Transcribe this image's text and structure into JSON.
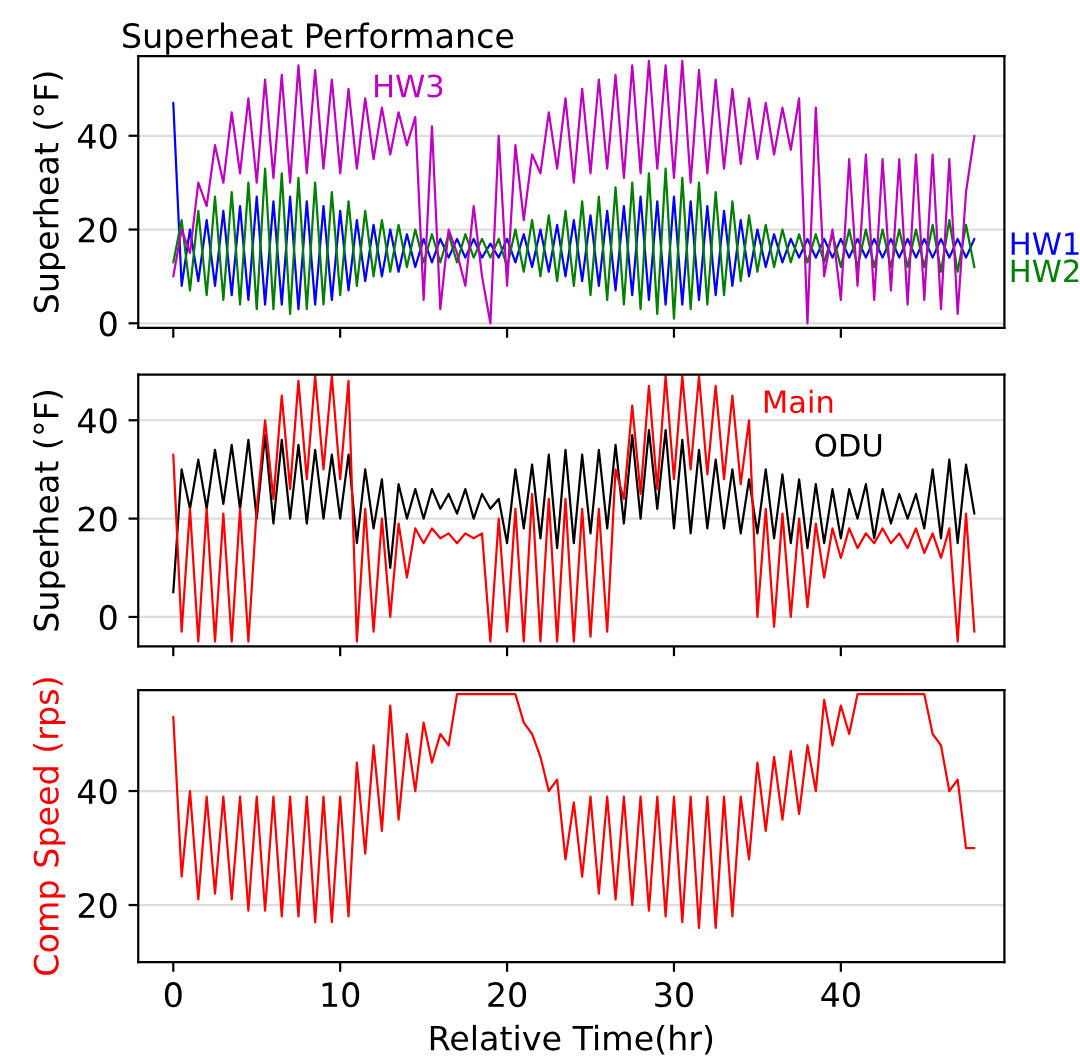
{
  "chart_data": [
    {
      "type": "line",
      "title": "Superheat Performance",
      "ylabel": "Superheat (°F)",
      "xlim": [
        -2.1,
        49.8
      ],
      "xticks": [
        {
          "value": 0,
          "label": null
        },
        {
          "value": 10,
          "label": null
        },
        {
          "value": 20,
          "label": null
        },
        {
          "value": 30,
          "label": null
        },
        {
          "value": 40,
          "label": null
        }
      ],
      "ylim": [
        -1,
        57
      ],
      "yticks": [
        0,
        20,
        40
      ],
      "grid": "y",
      "legend": false,
      "tick_labels": "y",
      "x": [
        0,
        0.5,
        1,
        1.5,
        2,
        2.5,
        3,
        3.5,
        4,
        4.5,
        5,
        5.5,
        6,
        6.5,
        7,
        7.5,
        8,
        8.5,
        9,
        9.5,
        10,
        10.5,
        11,
        11.5,
        12,
        12.5,
        13,
        13.5,
        14,
        14.5,
        15,
        15.5,
        16,
        16.5,
        17,
        17.5,
        18,
        18.5,
        19,
        19.5,
        20,
        20.5,
        21,
        21.5,
        22,
        22.5,
        23,
        23.5,
        24,
        24.5,
        25,
        25.5,
        26,
        26.5,
        27,
        27.5,
        28,
        28.5,
        29,
        29.5,
        30,
        30.5,
        31,
        31.5,
        32,
        32.5,
        33,
        33.5,
        34,
        34.5,
        35,
        35.5,
        36,
        36.5,
        37,
        37.5,
        38,
        38.5,
        39,
        39.5,
        40,
        40.5,
        41,
        41.5,
        42,
        42.5,
        43,
        43.5,
        44,
        44.5,
        45,
        45.5,
        46,
        46.5,
        47,
        47.5,
        48
      ],
      "series": [
        {
          "name": "HW1",
          "color": "#0000ff",
          "values": [
            47,
            8,
            20,
            9,
            22,
            8,
            24,
            6,
            25,
            5,
            27,
            4,
            26,
            4,
            27,
            3,
            26,
            4,
            25,
            5,
            24,
            7,
            22,
            9,
            21,
            10,
            20,
            11,
            19,
            12,
            18,
            13,
            18,
            14,
            18,
            14,
            18,
            14,
            17,
            14,
            18,
            13,
            19,
            12,
            20,
            11,
            21,
            10,
            22,
            9,
            23,
            8,
            24,
            7,
            25,
            6,
            27,
            5,
            26,
            4,
            27,
            4,
            26,
            5,
            25,
            6,
            24,
            8,
            22,
            10,
            20,
            12,
            19,
            13,
            18,
            14,
            18,
            14,
            18,
            14,
            18,
            14,
            18,
            14,
            18,
            14,
            18,
            14,
            18,
            14,
            18,
            14,
            18,
            14,
            18,
            14,
            18
          ]
        },
        {
          "name": "HW2",
          "color": "#008000",
          "values": [
            13,
            22,
            7,
            24,
            6,
            27,
            5,
            28,
            4,
            30,
            3,
            33,
            3,
            32,
            2,
            31,
            3,
            30,
            4,
            28,
            6,
            26,
            8,
            24,
            10,
            22,
            11,
            21,
            12,
            20,
            13,
            19,
            13,
            19,
            13,
            19,
            14,
            18,
            14,
            18,
            12,
            20,
            11,
            22,
            10,
            23,
            9,
            24,
            8,
            26,
            6,
            27,
            5,
            29,
            4,
            30,
            3,
            32,
            2,
            33,
            1,
            31,
            3,
            30,
            4,
            28,
            6,
            26,
            9,
            23,
            11,
            21,
            12,
            20,
            13,
            19,
            13,
            19,
            13,
            19,
            12,
            20,
            12,
            20,
            12,
            20,
            12,
            20,
            12,
            20,
            12,
            21,
            11,
            22,
            11,
            21,
            12
          ]
        },
        {
          "name": "HW3",
          "color": "#c000c0",
          "values": [
            10,
            20,
            15,
            30,
            25,
            38,
            30,
            45,
            32,
            48,
            30,
            52,
            31,
            53,
            30,
            55,
            32,
            54,
            33,
            52,
            32,
            50,
            33,
            48,
            35,
            46,
            36,
            45,
            38,
            44,
            5,
            42,
            3,
            20,
            15,
            8,
            25,
            10,
            0,
            40,
            8,
            38,
            22,
            36,
            32,
            45,
            33,
            48,
            30,
            50,
            32,
            52,
            33,
            53,
            31,
            55,
            32,
            56,
            33,
            55,
            31,
            56,
            30,
            54,
            32,
            52,
            33,
            50,
            34,
            48,
            35,
            47,
            36,
            46,
            37,
            48,
            0,
            46,
            10,
            20,
            5,
            35,
            8,
            36,
            5,
            35,
            7,
            35,
            4,
            36,
            5,
            36,
            3,
            35,
            2,
            28,
            40
          ]
        }
      ]
    },
    {
      "type": "line",
      "ylabel": "Superheat (°F)",
      "xlim": [
        -2.1,
        49.8
      ],
      "xticks": [
        {
          "value": 0,
          "label": null
        },
        {
          "value": 10,
          "label": null
        },
        {
          "value": 20,
          "label": null
        },
        {
          "value": 30,
          "label": null
        },
        {
          "value": 40,
          "label": null
        }
      ],
      "ylim": [
        -6,
        49.3
      ],
      "yticks": [
        0,
        20,
        40
      ],
      "grid": "y",
      "legend": false,
      "tick_labels": "y",
      "x": [
        0,
        0.5,
        1,
        1.5,
        2,
        2.5,
        3,
        3.5,
        4,
        4.5,
        5,
        5.5,
        6,
        6.5,
        7,
        7.5,
        8,
        8.5,
        9,
        9.5,
        10,
        10.5,
        11,
        11.5,
        12,
        12.5,
        13,
        13.5,
        14,
        14.5,
        15,
        15.5,
        16,
        16.5,
        17,
        17.5,
        18,
        18.5,
        19,
        19.5,
        20,
        20.5,
        21,
        21.5,
        22,
        22.5,
        23,
        23.5,
        24,
        24.5,
        25,
        25.5,
        26,
        26.5,
        27,
        27.5,
        28,
        28.5,
        29,
        29.5,
        30,
        30.5,
        31,
        31.5,
        32,
        32.5,
        33,
        33.5,
        34,
        34.5,
        35,
        35.5,
        36,
        36.5,
        37,
        37.5,
        38,
        38.5,
        39,
        39.5,
        40,
        40.5,
        41,
        41.5,
        42,
        42.5,
        43,
        43.5,
        44,
        44.5,
        45,
        45.5,
        46,
        46.5,
        47,
        47.5,
        48
      ],
      "series": [
        {
          "name": "ODU",
          "color": "#000000",
          "values": [
            5,
            30,
            22,
            32,
            22,
            34,
            23,
            35,
            22,
            36,
            20,
            37,
            19,
            36,
            20,
            35,
            19,
            34,
            20,
            33,
            20,
            33,
            15,
            30,
            18,
            28,
            10,
            27,
            20,
            26,
            20,
            26,
            22,
            25,
            21,
            26,
            20,
            25,
            22,
            24,
            15,
            30,
            18,
            31,
            16,
            33,
            14,
            34,
            15,
            33,
            17,
            34,
            18,
            35,
            19,
            37,
            20,
            38,
            22,
            38,
            18,
            36,
            17,
            34,
            18,
            32,
            18,
            30,
            17,
            28,
            17,
            30,
            16,
            29,
            15,
            28,
            14,
            27,
            15,
            26,
            16,
            26,
            20,
            27,
            16,
            26,
            19,
            25,
            20,
            25,
            18,
            30,
            16,
            32,
            15,
            31,
            21
          ]
        },
        {
          "name": "Main",
          "color": "#ff0000",
          "values": [
            33,
            -3,
            22,
            -5,
            22,
            -5,
            21,
            -5,
            22,
            -5,
            22,
            40,
            24,
            45,
            26,
            48,
            28,
            49,
            30,
            49,
            28,
            48,
            -5,
            22,
            -3,
            20,
            0,
            19,
            8,
            18,
            15,
            18,
            16,
            17,
            15,
            17,
            16,
            17,
            -5,
            20,
            -3,
            22,
            -5,
            25,
            -5,
            24,
            -5,
            24,
            -5,
            22,
            -4,
            22,
            -3,
            30,
            24,
            43,
            25,
            47,
            26,
            49,
            28,
            49,
            30,
            49,
            29,
            47,
            28,
            45,
            27,
            40,
            0,
            22,
            -2,
            21,
            0,
            20,
            2,
            19,
            8,
            18,
            12,
            18,
            14,
            17,
            15,
            18,
            15,
            17,
            14,
            18,
            13,
            17,
            12,
            18,
            -5,
            21,
            -3
          ]
        }
      ]
    },
    {
      "type": "line",
      "xlabel": "Relative Time(hr)",
      "ylabel": "Comp Speed (rps)",
      "xlim": [
        -2.1,
        49.8
      ],
      "xticks": [
        0,
        10,
        20,
        30,
        40
      ],
      "ylim": [
        10,
        57.7
      ],
      "yticks": [
        20,
        40
      ],
      "grid": "y",
      "legend": false,
      "x": [
        0,
        0.5,
        1,
        1.5,
        2,
        2.5,
        3,
        3.5,
        4,
        4.5,
        5,
        5.5,
        6,
        6.5,
        7,
        7.5,
        8,
        8.5,
        9,
        9.5,
        10,
        10.5,
        11,
        11.5,
        12,
        12.5,
        13,
        13.5,
        14,
        14.5,
        15,
        15.5,
        16,
        16.5,
        17,
        17.5,
        18,
        18.5,
        19,
        19.5,
        20,
        20.5,
        21,
        21.5,
        22,
        22.5,
        23,
        23.5,
        24,
        24.5,
        25,
        25.5,
        26,
        26.5,
        27,
        27.5,
        28,
        28.5,
        29,
        29.5,
        30,
        30.5,
        31,
        31.5,
        32,
        32.5,
        33,
        33.5,
        34,
        34.5,
        35,
        35.5,
        36,
        36.5,
        37,
        37.5,
        38,
        38.5,
        39,
        39.5,
        40,
        40.5,
        41,
        41.5,
        42,
        42.5,
        43,
        43.5,
        44,
        44.5,
        45,
        45.5,
        46,
        46.5,
        47,
        47.5,
        48
      ],
      "series": [
        {
          "color": "#ff0000",
          "values": [
            53,
            25,
            40,
            21,
            39,
            22,
            39,
            21,
            39,
            19,
            39,
            19,
            39,
            18,
            39,
            18,
            39,
            17,
            39,
            17,
            39,
            18,
            45,
            29,
            48,
            33,
            55,
            35,
            50,
            40,
            52,
            45,
            50,
            48,
            57,
            57,
            57,
            57,
            57,
            57,
            57,
            57,
            52,
            50,
            46,
            40,
            42,
            28,
            38,
            25,
            39,
            22,
            39,
            21,
            39,
            20,
            39,
            19,
            39,
            18,
            39,
            17,
            39,
            16,
            39,
            16,
            39,
            18,
            39,
            28,
            45,
            33,
            46,
            35,
            47,
            36,
            48,
            40,
            56,
            48,
            55,
            50,
            57,
            57,
            57,
            57,
            57,
            57,
            57,
            57,
            57,
            50,
            48,
            40,
            42,
            30,
            30
          ]
        }
      ]
    }
  ]
}
